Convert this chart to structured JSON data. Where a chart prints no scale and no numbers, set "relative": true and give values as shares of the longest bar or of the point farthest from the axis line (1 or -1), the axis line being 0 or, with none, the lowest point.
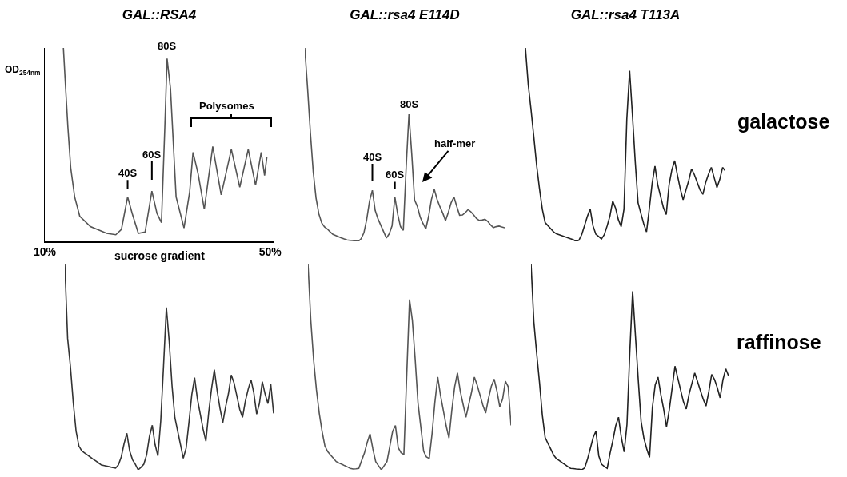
{
  "chart_data": [
    {
      "type": "line",
      "title": "GAL::RSA4",
      "ylabel": "OD$_{254nm}$",
      "xlabel": "sucrose gradient",
      "relative": true,
      "tick_labels": "x",
      "xlim": [
        10,
        50.6
      ],
      "xticks": [
        {
          "value": 10,
          "label": "10%"
        },
        {
          "value": 50,
          "label": "50%"
        }
      ],
      "x": [
        13.3,
        13.7,
        14.1,
        14.6,
        15.3,
        16.2,
        18.1,
        21.0,
        22.6,
        23.6,
        24.7,
        25.5,
        26.6,
        27.8,
        29.0,
        29.9,
        30.7,
        31.3,
        31.7,
        32.3,
        33.3,
        34.7,
        35.7,
        36.3,
        37.2,
        38.3,
        39.8,
        41.3,
        43.1,
        44.6,
        46.1,
        47.4,
        48.4,
        49.0,
        49.4
      ],
      "series": [
        {
          "color": "#555555",
          "values": [
            1.0,
            0.79,
            0.59,
            0.38,
            0.23,
            0.13,
            0.076,
            0.041,
            0.034,
            0.062,
            0.23,
            0.145,
            0.041,
            0.048,
            0.26,
            0.145,
            0.097,
            0.59,
            0.945,
            0.79,
            0.23,
            0.069,
            0.255,
            0.46,
            0.35,
            0.166,
            0.49,
            0.24,
            0.476,
            0.28,
            0.476,
            0.29,
            0.46,
            0.34,
            0.434
          ]
        }
      ],
      "annotations": [
        {
          "text": "40S",
          "x": 24.7,
          "y": 0.23
        },
        {
          "text": "60S",
          "x": 29.0,
          "y": 0.26
        },
        {
          "text": "80S",
          "x": 31.7,
          "y": 0.945
        },
        "Polysomes"
      ]
    },
    {
      "type": "line",
      "title": "GAL::rsa4 E114D",
      "relative": true,
      "tick_labels": false,
      "categories": [
        null,
        null,
        null,
        null,
        null,
        null,
        null,
        null,
        null,
        null,
        null,
        null,
        null,
        null,
        null,
        null,
        null,
        null,
        null,
        null,
        null,
        null,
        null,
        null,
        null,
        null,
        null,
        null,
        null,
        null,
        null,
        null,
        null,
        null,
        null,
        null,
        null,
        null,
        null,
        null,
        null,
        null,
        null,
        null,
        null,
        null,
        null,
        null,
        null,
        null,
        null,
        null,
        null,
        null,
        null,
        null,
        null,
        null,
        null,
        null,
        null,
        null,
        null,
        null,
        null,
        null,
        null,
        null,
        null,
        null,
        null,
        null
      ],
      "series": [
        {
          "color": "#555555",
          "values": [
            1.0,
            0.79,
            0.56,
            0.36,
            0.224,
            0.142,
            0.095,
            0.075,
            0.064,
            0.049,
            0.036,
            0.03,
            0.024,
            0.018,
            0.012,
            0.007,
            0.005,
            0.004,
            0.002,
            0,
            0.013,
            0.044,
            0.113,
            0.208,
            0.264,
            0.16,
            0.116,
            0.083,
            0.05,
            0.017,
            0.039,
            0.08,
            0.229,
            0.14,
            0.076,
            0.057,
            0.38,
            0.657,
            0.45,
            0.214,
            0.18,
            0.125,
            0.092,
            0.065,
            0.13,
            0.217,
            0.269,
            0.217,
            0.179,
            0.146,
            0.107,
            0.15,
            0.2,
            0.229,
            0.18,
            0.135,
            0.136,
            0.148,
            0.164,
            0.153,
            0.136,
            0.118,
            0.108,
            0.11,
            0.114,
            0.103,
            0.085,
            0.071,
            0.076,
            0.079,
            0.074,
            0.07
          ]
        }
      ],
      "annotations": [
        {
          "text": "40S",
          "y": 0.264
        },
        {
          "text": "60S",
          "y": 0.229
        },
        {
          "text": "80S",
          "y": 0.657
        },
        "half-mer"
      ]
    },
    {
      "type": "line",
      "title": "GAL::rsa4 T113A",
      "relative": true,
      "tick_labels": false,
      "categories": [
        null,
        null,
        null,
        null,
        null,
        null,
        null,
        null,
        null,
        null,
        null,
        null,
        null,
        null,
        null,
        null,
        null,
        null,
        null,
        null,
        null,
        null,
        null,
        null,
        null,
        null,
        null,
        null,
        null,
        null,
        null,
        null,
        null,
        null,
        null,
        null,
        null,
        null,
        null,
        null,
        null,
        null,
        null,
        null,
        null,
        null,
        null,
        null,
        null,
        null,
        null,
        null,
        null,
        null,
        null,
        null,
        null,
        null,
        null,
        null,
        null,
        null,
        null,
        null,
        null,
        null,
        null,
        null,
        null,
        null,
        null,
        null
      ],
      "series": [
        {
          "color": "#222222",
          "values": [
            1.0,
            0.81,
            0.679,
            0.537,
            0.391,
            0.271,
            0.166,
            0.097,
            0.081,
            0.065,
            0.049,
            0.039,
            0.034,
            0.029,
            0.024,
            0.019,
            0.013,
            0.008,
            0,
            0.006,
            0.035,
            0.082,
            0.129,
            0.167,
            0.08,
            0.037,
            0.025,
            0.012,
            0.034,
            0.079,
            0.13,
            0.208,
            0.172,
            0.112,
            0.076,
            0.167,
            0.63,
            0.882,
            0.653,
            0.41,
            0.199,
            0.144,
            0.091,
            0.049,
            0.17,
            0.3,
            0.389,
            0.292,
            0.232,
            0.174,
            0.139,
            0.292,
            0.37,
            0.417,
            0.34,
            0.27,
            0.215,
            0.265,
            0.315,
            0.375,
            0.344,
            0.305,
            0.266,
            0.243,
            0.304,
            0.347,
            0.382,
            0.33,
            0.278,
            0.32,
            0.382,
            0.364
          ]
        }
      ],
      "annotations": [
        "galactose"
      ]
    },
    {
      "type": "line",
      "relative": true,
      "tick_labels": false,
      "categories": [
        null,
        null,
        null,
        null,
        null,
        null,
        null,
        null,
        null,
        null,
        null,
        null,
        null,
        null,
        null,
        null,
        null,
        null,
        null,
        null,
        null,
        null,
        null,
        null,
        null,
        null,
        null,
        null,
        null,
        null,
        null,
        null,
        null,
        null,
        null,
        null,
        null,
        null,
        null,
        null,
        null,
        null,
        null,
        null,
        null,
        null,
        null,
        null,
        null,
        null,
        null,
        null,
        null,
        null,
        null,
        null,
        null,
        null,
        null,
        null,
        null,
        null,
        null,
        null,
        null,
        null,
        null,
        null,
        null,
        null,
        null,
        null,
        null,
        null,
        null
      ],
      "series": [
        {
          "color": "#333333",
          "values": [
            1.0,
            0.638,
            0.5,
            0.326,
            0.187,
            0.115,
            0.092,
            0.082,
            0.072,
            0.062,
            0.052,
            0.043,
            0.033,
            0.023,
            0.02,
            0.017,
            0.014,
            0.011,
            0.008,
            0.024,
            0.062,
            0.126,
            0.177,
            0.091,
            0.049,
            0.027,
            0,
            0.012,
            0.027,
            0.072,
            0.162,
            0.216,
            0.122,
            0.068,
            0.237,
            0.505,
            0.788,
            0.623,
            0.409,
            0.254,
            0.188,
            0.122,
            0.056,
            0.105,
            0.23,
            0.364,
            0.447,
            0.344,
            0.271,
            0.198,
            0.139,
            0.278,
            0.393,
            0.486,
            0.383,
            0.298,
            0.229,
            0.306,
            0.37,
            0.46,
            0.421,
            0.357,
            0.293,
            0.254,
            0.334,
            0.391,
            0.437,
            0.373,
            0.27,
            0.323,
            0.428,
            0.367,
            0.321,
            0.415,
            0.274
          ]
        }
      ]
    },
    {
      "type": "line",
      "relative": true,
      "tick_labels": false,
      "categories": [
        null,
        null,
        null,
        null,
        null,
        null,
        null,
        null,
        null,
        null,
        null,
        null,
        null,
        null,
        null,
        null,
        null,
        null,
        null,
        null,
        null,
        null,
        null,
        null,
        null,
        null,
        null,
        null,
        null,
        null,
        null,
        null,
        null,
        null,
        null,
        null,
        null,
        null,
        null,
        null,
        null,
        null,
        null,
        null,
        null,
        null,
        null,
        null,
        null,
        null,
        null,
        null,
        null,
        null,
        null,
        null,
        null,
        null,
        null,
        null,
        null,
        null,
        null,
        null,
        null,
        null,
        null,
        null,
        null,
        null,
        null,
        null,
        null
      ],
      "series": [
        {
          "color": "#555555",
          "values": [
            1.0,
            0.725,
            0.533,
            0.388,
            0.274,
            0.186,
            0.115,
            0.088,
            0.072,
            0.056,
            0.04,
            0.033,
            0.027,
            0.02,
            0.014,
            0.007,
            0.004,
            0.005,
            0.007,
            0.044,
            0.081,
            0.133,
            0.174,
            0.101,
            0.04,
            0.02,
            0,
            0.02,
            0.04,
            0.113,
            0.186,
            0.215,
            0.107,
            0.083,
            0.074,
            0.456,
            0.826,
            0.725,
            0.537,
            0.325,
            0.208,
            0.09,
            0.062,
            0.055,
            0.176,
            0.328,
            0.45,
            0.361,
            0.287,
            0.213,
            0.154,
            0.289,
            0.402,
            0.47,
            0.381,
            0.318,
            0.255,
            0.316,
            0.377,
            0.45,
            0.411,
            0.363,
            0.314,
            0.275,
            0.346,
            0.405,
            0.44,
            0.383,
            0.306,
            0.343,
            0.43,
            0.403,
            0.215
          ]
        }
      ]
    },
    {
      "type": "line",
      "relative": true,
      "tick_labels": false,
      "categories": [
        null,
        null,
        null,
        null,
        null,
        null,
        null,
        null,
        null,
        null,
        null,
        null,
        null,
        null,
        null,
        null,
        null,
        null,
        null,
        null,
        null,
        null,
        null,
        null,
        null,
        null,
        null,
        null,
        null,
        null,
        null,
        null,
        null,
        null,
        null,
        null,
        null,
        null,
        null,
        null,
        null,
        null,
        null,
        null,
        null,
        null,
        null,
        null,
        null,
        null,
        null,
        null,
        null,
        null,
        null,
        null,
        null,
        null,
        null,
        null,
        null,
        null,
        null,
        null,
        null,
        null,
        null,
        null,
        null,
        null,
        null
      ],
      "series": [
        {
          "color": "#222222",
          "values": [
            1.0,
            0.718,
            0.565,
            0.424,
            0.266,
            0.157,
            0.128,
            0.1,
            0.071,
            0.054,
            0.045,
            0.035,
            0.026,
            0.016,
            0.007,
            0.006,
            0.004,
            0.003,
            0,
            0.009,
            0.051,
            0.103,
            0.156,
            0.188,
            0.068,
            0.027,
            0.016,
            0.007,
            0.08,
            0.142,
            0.213,
            0.255,
            0.157,
            0.087,
            0.22,
            0.57,
            0.866,
            0.65,
            0.436,
            0.235,
            0.153,
            0.102,
            0.06,
            0.302,
            0.412,
            0.45,
            0.365,
            0.294,
            0.208,
            0.292,
            0.397,
            0.503,
            0.445,
            0.387,
            0.33,
            0.295,
            0.367,
            0.419,
            0.47,
            0.428,
            0.385,
            0.343,
            0.309,
            0.38,
            0.463,
            0.439,
            0.398,
            0.349,
            0.437,
            0.49,
            0.456
          ]
        }
      ],
      "annotations": [
        "raffinose"
      ]
    }
  ]
}
